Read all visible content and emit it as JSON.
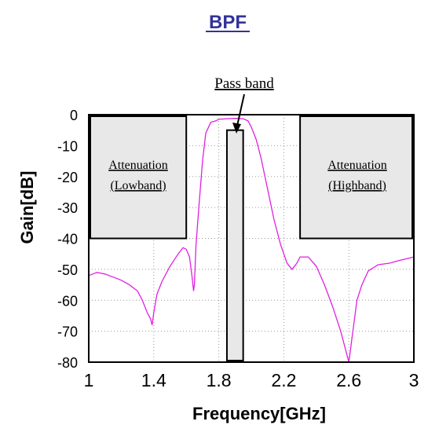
{
  "chart_data": {
    "type": "line",
    "title": "BPF",
    "xlabel": "Frequency[GHz]",
    "ylabel": "Gain[dB]",
    "xlim": [
      1,
      3
    ],
    "ylim": [
      -80,
      0
    ],
    "x_ticks": [
      "1",
      "1.4",
      "1.8",
      "2.2",
      "2.6",
      "3"
    ],
    "y_ticks": [
      "0",
      "-10",
      "-20",
      "-30",
      "-40",
      "-50",
      "-60",
      "-70",
      "-80"
    ],
    "grid": "dotted",
    "colors": {
      "trace": "#e020e0",
      "mask_fill": "#e8e8e8",
      "title": "#333399"
    },
    "annotations": {
      "pass_band": "Pass band",
      "low_line1": "Attenuation",
      "low_line2": "(Lowband)",
      "high_line1": "Attenuation",
      "high_line2": "(Highband)"
    },
    "masks": [
      {
        "name": "Attenuation (Lowband)",
        "x0": 1.0,
        "x1": 1.6,
        "y_top": 0,
        "y_bottom": -40
      },
      {
        "name": "Pass band",
        "x0": 1.85,
        "x1": 1.95,
        "y_top": -5,
        "y_bottom": -80
      },
      {
        "name": "Attenuation (Highband)",
        "x0": 2.3,
        "x1": 3.0,
        "y_top": 0,
        "y_bottom": -40
      }
    ],
    "series": [
      {
        "x": [
          1.0,
          1.05,
          1.1,
          1.15,
          1.2,
          1.25,
          1.3,
          1.33,
          1.36,
          1.38,
          1.39,
          1.4,
          1.42,
          1.45,
          1.5,
          1.55,
          1.58,
          1.6,
          1.62,
          1.635,
          1.645,
          1.65,
          1.66,
          1.68,
          1.7,
          1.72,
          1.75,
          1.78,
          1.8,
          1.85,
          1.9,
          1.95,
          1.98,
          2.0,
          2.03,
          2.06,
          2.1,
          2.14,
          2.18,
          2.2,
          2.22,
          2.25,
          2.28,
          2.3,
          2.35,
          2.4,
          2.45,
          2.5,
          2.55,
          2.58,
          2.6,
          2.61,
          2.62,
          2.63,
          2.65,
          2.68,
          2.72,
          2.78,
          2.85,
          2.92,
          3.0
        ],
        "y": [
          -52,
          -51,
          -51.5,
          -52.5,
          -53.5,
          -55,
          -57,
          -60,
          -64,
          -66,
          -68,
          -64,
          -58,
          -54,
          -49,
          -45,
          -43,
          -43.5,
          -46,
          -52,
          -57,
          -55,
          -42,
          -28,
          -15,
          -6,
          -2.5,
          -2,
          -1.5,
          -1.3,
          -1.2,
          -1.3,
          -2,
          -4,
          -8,
          -14,
          -24,
          -34,
          -42,
          -45,
          -48,
          -50,
          -48,
          -46,
          -46,
          -49,
          -55,
          -62,
          -70,
          -76,
          -80,
          -76,
          -72,
          -68,
          -60,
          -55,
          -50.5,
          -48.5,
          -48,
          -47,
          -46
        ]
      }
    ]
  }
}
